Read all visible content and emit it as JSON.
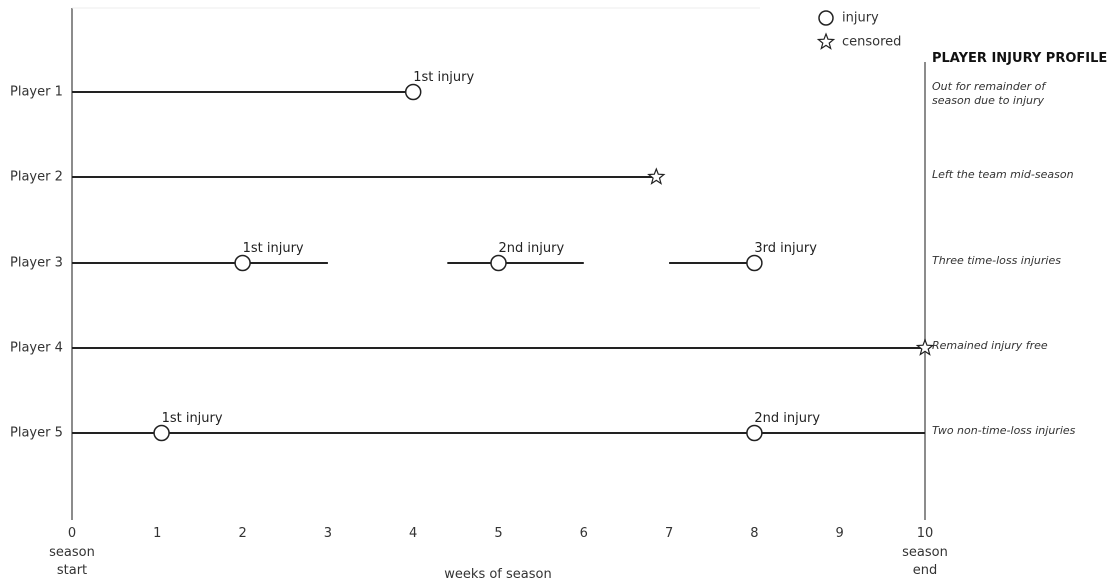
{
  "chart_data": {
    "type": "timeline",
    "xlabel": "weeks of season",
    "xlim": [
      0,
      10
    ],
    "x_ticks": [
      "0",
      "1",
      "2",
      "3",
      "4",
      "5",
      "6",
      "7",
      "8",
      "9",
      "10"
    ],
    "x_start_label": [
      "season",
      "start"
    ],
    "x_end_label": [
      "season",
      "end"
    ],
    "profile_title": "PLAYER INJURY PROFILE",
    "legend": [
      {
        "marker": "circle",
        "label": "injury"
      },
      {
        "marker": "star",
        "label": "censored"
      }
    ],
    "players": [
      {
        "name": "Player 1",
        "segments": [
          [
            0,
            4
          ]
        ],
        "events": [
          {
            "x": 4,
            "type": "injury",
            "label": "1st injury"
          }
        ],
        "profile": [
          "Out for remainder of",
          "season due to injury"
        ]
      },
      {
        "name": "Player 2",
        "segments": [
          [
            0,
            6.85
          ]
        ],
        "events": [
          {
            "x": 6.85,
            "type": "censored",
            "label": ""
          }
        ],
        "profile": [
          "Left the team mid-season"
        ]
      },
      {
        "name": "Player 3",
        "segments": [
          [
            0,
            3
          ],
          [
            4.4,
            6
          ],
          [
            7,
            8
          ]
        ],
        "events": [
          {
            "x": 2,
            "type": "injury",
            "label": "1st injury"
          },
          {
            "x": 5,
            "type": "injury",
            "label": "2nd injury"
          },
          {
            "x": 8,
            "type": "injury",
            "label": "3rd injury"
          }
        ],
        "profile": [
          "Three time-loss injuries"
        ]
      },
      {
        "name": "Player 4",
        "segments": [
          [
            0,
            10
          ]
        ],
        "events": [
          {
            "x": 10,
            "type": "censored",
            "label": ""
          }
        ],
        "profile": [
          "Remained injury free"
        ]
      },
      {
        "name": "Player 5",
        "segments": [
          [
            0,
            10
          ]
        ],
        "events": [
          {
            "x": 1.05,
            "type": "injury",
            "label": "1st injury"
          },
          {
            "x": 8,
            "type": "injury",
            "label": "2nd injury"
          }
        ],
        "profile": [
          "Two non-time-loss injuries"
        ]
      }
    ]
  }
}
